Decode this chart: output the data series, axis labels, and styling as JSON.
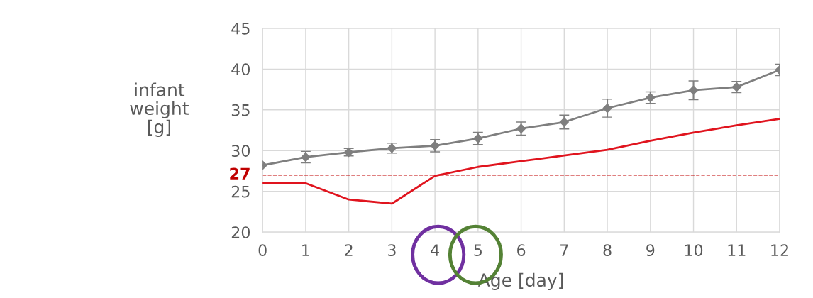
{
  "chart_data": {
    "type": "line",
    "xlabel": "Age [day]",
    "ylabel": "infant\nweight\n[g]",
    "x": [
      0,
      1,
      2,
      3,
      4,
      5,
      6,
      7,
      8,
      9,
      10,
      11,
      12
    ],
    "series": [
      {
        "color": "#7f7f7f",
        "marker": "diamond",
        "values": [
          28.2,
          29.2,
          29.8,
          30.3,
          30.6,
          31.5,
          32.7,
          33.5,
          35.2,
          36.5,
          37.4,
          37.8,
          39.9
        ],
        "errors": [
          null,
          0.7,
          0.45,
          0.6,
          0.75,
          0.75,
          0.8,
          0.85,
          1.1,
          0.7,
          1.15,
          0.7,
          0.7
        ]
      },
      {
        "color": "#e0141e",
        "values": [
          26.0,
          26.0,
          24.0,
          23.5,
          26.9,
          28.0,
          28.7,
          29.4,
          30.1,
          31.2,
          32.2,
          33.1,
          33.9
        ]
      }
    ],
    "xlim": [
      0,
      12
    ],
    "xticks": [
      0,
      1,
      2,
      3,
      4,
      5,
      6,
      7,
      8,
      9,
      10,
      11,
      12
    ],
    "ylim": [
      20,
      45
    ],
    "yticks": [
      20,
      25,
      30,
      35,
      40,
      45
    ],
    "ref_lines": [
      {
        "axis": "y",
        "value": 27,
        "label": "27",
        "color": "#c00000",
        "line_style": "dashed"
      }
    ],
    "grid": true,
    "legend": false
  }
}
